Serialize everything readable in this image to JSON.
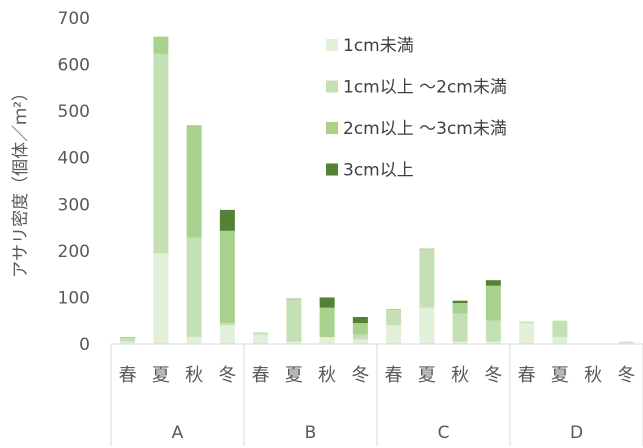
{
  "chart_data": {
    "type": "bar",
    "stacked": true,
    "title": "",
    "ylabel": "アサリ密度（個体／ｍ²）",
    "ylim": [
      0,
      700
    ],
    "yticks": [
      0,
      100,
      200,
      300,
      400,
      500,
      600,
      700
    ],
    "grid": false,
    "legend_position": "top-right",
    "groups": [
      "A",
      "B",
      "C",
      "D"
    ],
    "seasons": [
      "春",
      "夏",
      "秋",
      "冬"
    ],
    "categories": [
      "春",
      "夏",
      "秋",
      "冬",
      "春",
      "夏",
      "秋",
      "冬",
      "春",
      "夏",
      "秋",
      "冬",
      "春",
      "夏",
      "秋",
      "冬"
    ],
    "series": [
      {
        "name": "1cm未満",
        "color": "#e2efd9",
        "values": [
          5,
          195,
          15,
          40,
          20,
          5,
          15,
          10,
          40,
          78,
          5,
          5,
          45,
          15,
          0,
          3
        ]
      },
      {
        "name": "1cm以上 ～2cm未満",
        "color": "#c5e0b4",
        "values": [
          8,
          428,
          213,
          5,
          5,
          90,
          0,
          10,
          33,
          125,
          60,
          45,
          3,
          35,
          0,
          2
        ]
      },
      {
        "name": "2cm以上 ～3cm未満",
        "color": "#a9d18e",
        "values": [
          2,
          37,
          242,
          198,
          0,
          3,
          63,
          25,
          2,
          2,
          23,
          75,
          0,
          0,
          0,
          0
        ]
      },
      {
        "name": "3cm以上",
        "color": "#548235",
        "values": [
          0,
          0,
          0,
          45,
          0,
          0,
          22,
          13,
          0,
          0,
          5,
          12,
          0,
          0,
          0,
          0
        ]
      }
    ]
  }
}
